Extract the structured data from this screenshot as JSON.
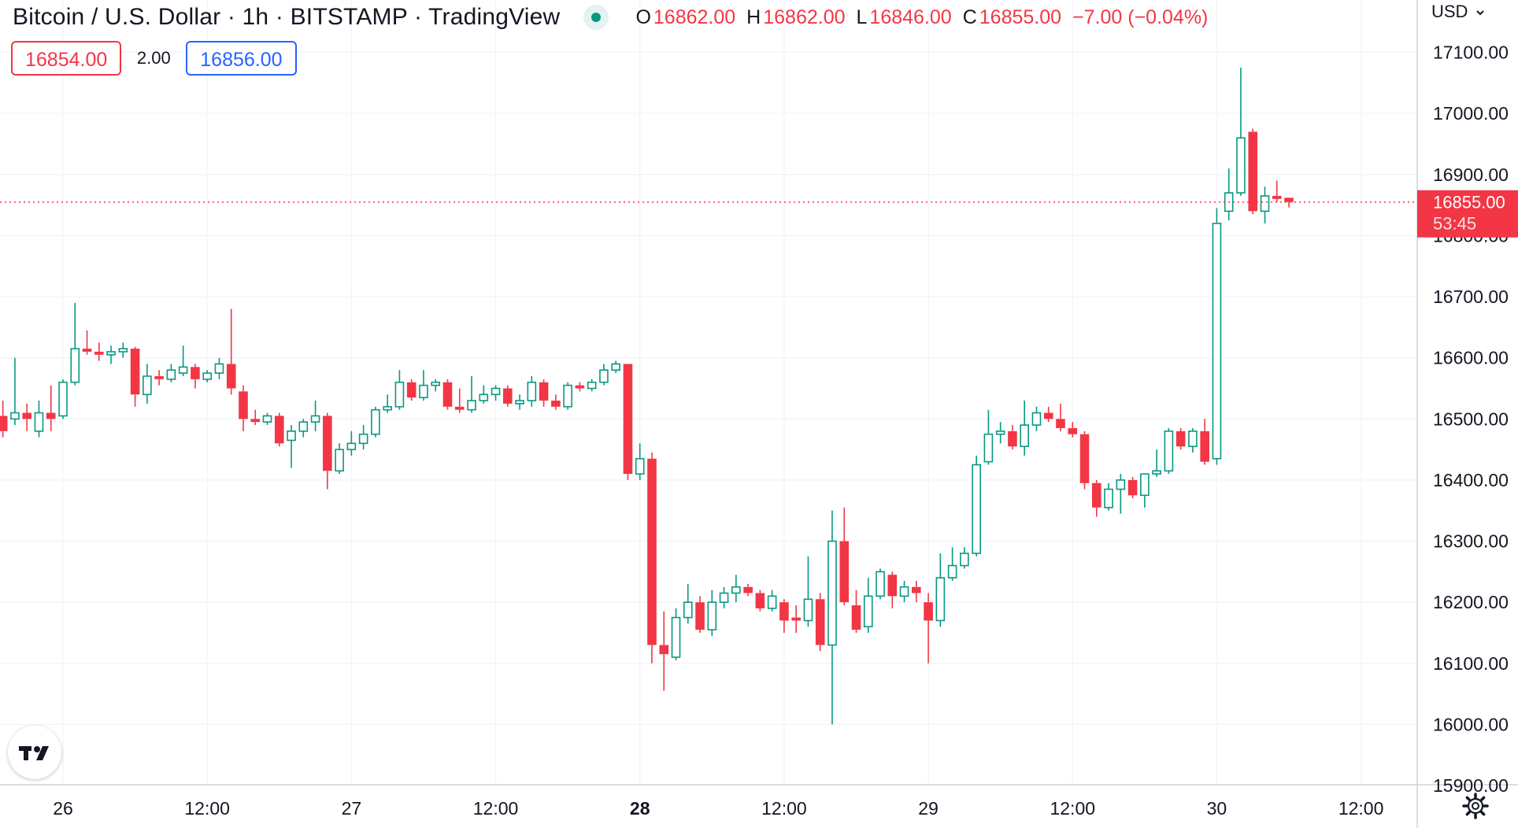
{
  "header": {
    "title": "Bitcoin / U.S. Dollar · 1h · BITSTAMP · TradingView",
    "ohlc": {
      "o_label": "O",
      "o_value": "16862.00",
      "h_label": "H",
      "h_value": "16862.00",
      "l_label": "L",
      "l_value": "16846.00",
      "c_label": "C",
      "c_value": "16855.00",
      "change": "−7.00 (−0.04%)"
    },
    "sell_price": "16854.00",
    "spread": "2.00",
    "buy_price": "16856.00",
    "currency": "USD"
  },
  "colors": {
    "up": "#089981",
    "down": "#f23645",
    "grid": "#f0f3fa",
    "text": "#131722",
    "accent": "#2962ff"
  },
  "icons": {
    "logo": "tradingview-logo-icon",
    "settings": "gear-icon",
    "currency_caret": "chevron-down-icon",
    "live": "market-open-dot-icon"
  },
  "chart_data": {
    "type": "candlestick",
    "timeframe": "1h",
    "ylim": [
      15900,
      17120
    ],
    "y_ticks": [
      "17100.00",
      "17000.00",
      "16900.00",
      "16800.00",
      "16700.00",
      "16600.00",
      "16500.00",
      "16400.00",
      "16300.00",
      "16200.00",
      "16100.00",
      "16000.00",
      "15900.00"
    ],
    "x_ticks": [
      {
        "x": 0,
        "label": "26",
        "bold": false
      },
      {
        "x": 12,
        "label": "12:00",
        "bold": false
      },
      {
        "x": 24,
        "label": "27",
        "bold": false
      },
      {
        "x": 36,
        "label": "12:00",
        "bold": false
      },
      {
        "x": 48,
        "label": "28",
        "bold": true
      },
      {
        "x": 60,
        "label": "12:00",
        "bold": false
      },
      {
        "x": 72,
        "label": "29",
        "bold": false
      },
      {
        "x": 84,
        "label": "12:00",
        "bold": false
      },
      {
        "x": 96,
        "label": "30",
        "bold": false
      },
      {
        "x": 108,
        "label": "12:00",
        "bold": false
      }
    ],
    "last_price": {
      "value": 16855.0,
      "label": "16855.00",
      "countdown": "53:45"
    },
    "candles": [
      {
        "x": -5,
        "o": 16505,
        "h": 16530,
        "l": 16470,
        "c": 16480
      },
      {
        "x": -4,
        "o": 16500,
        "h": 16600,
        "l": 16490,
        "c": 16510
      },
      {
        "x": -3,
        "o": 16510,
        "h": 16525,
        "l": 16480,
        "c": 16500
      },
      {
        "x": -2,
        "o": 16480,
        "h": 16530,
        "l": 16470,
        "c": 16510
      },
      {
        "x": -1,
        "o": 16510,
        "h": 16555,
        "l": 16480,
        "c": 16500
      },
      {
        "x": 0,
        "o": 16505,
        "h": 16565,
        "l": 16500,
        "c": 16560
      },
      {
        "x": 1,
        "o": 16560,
        "h": 16690,
        "l": 16555,
        "c": 16615
      },
      {
        "x": 2,
        "o": 16615,
        "h": 16645,
        "l": 16605,
        "c": 16610
      },
      {
        "x": 3,
        "o": 16610,
        "h": 16625,
        "l": 16595,
        "c": 16605
      },
      {
        "x": 4,
        "o": 16605,
        "h": 16620,
        "l": 16590,
        "c": 16610
      },
      {
        "x": 5,
        "o": 16610,
        "h": 16625,
        "l": 16600,
        "c": 16615
      },
      {
        "x": 6,
        "o": 16615,
        "h": 16618,
        "l": 16520,
        "c": 16540
      },
      {
        "x": 7,
        "o": 16540,
        "h": 16590,
        "l": 16525,
        "c": 16570
      },
      {
        "x": 8,
        "o": 16570,
        "h": 16580,
        "l": 16555,
        "c": 16565
      },
      {
        "x": 9,
        "o": 16565,
        "h": 16590,
        "l": 16560,
        "c": 16580
      },
      {
        "x": 10,
        "o": 16575,
        "h": 16620,
        "l": 16570,
        "c": 16585
      },
      {
        "x": 11,
        "o": 16585,
        "h": 16590,
        "l": 16550,
        "c": 16565
      },
      {
        "x": 12,
        "o": 16565,
        "h": 16580,
        "l": 16560,
        "c": 16575
      },
      {
        "x": 13,
        "o": 16575,
        "h": 16600,
        "l": 16565,
        "c": 16590
      },
      {
        "x": 14,
        "o": 16590,
        "h": 16680,
        "l": 16540,
        "c": 16550
      },
      {
        "x": 15,
        "o": 16545,
        "h": 16555,
        "l": 16480,
        "c": 16500
      },
      {
        "x": 16,
        "o": 16500,
        "h": 16515,
        "l": 16490,
        "c": 16495
      },
      {
        "x": 17,
        "o": 16495,
        "h": 16510,
        "l": 16490,
        "c": 16505
      },
      {
        "x": 18,
        "o": 16505,
        "h": 16510,
        "l": 16455,
        "c": 16460
      },
      {
        "x": 19,
        "o": 16465,
        "h": 16490,
        "l": 16420,
        "c": 16480
      },
      {
        "x": 20,
        "o": 16480,
        "h": 16500,
        "l": 16470,
        "c": 16495
      },
      {
        "x": 21,
        "o": 16495,
        "h": 16530,
        "l": 16480,
        "c": 16505
      },
      {
        "x": 22,
        "o": 16505,
        "h": 16510,
        "l": 16385,
        "c": 16415
      },
      {
        "x": 23,
        "o": 16415,
        "h": 16460,
        "l": 16410,
        "c": 16450
      },
      {
        "x": 24,
        "o": 16450,
        "h": 16480,
        "l": 16440,
        "c": 16460
      },
      {
        "x": 25,
        "o": 16460,
        "h": 16490,
        "l": 16450,
        "c": 16475
      },
      {
        "x": 26,
        "o": 16475,
        "h": 16520,
        "l": 16470,
        "c": 16515
      },
      {
        "x": 27,
        "o": 16515,
        "h": 16540,
        "l": 16510,
        "c": 16520
      },
      {
        "x": 28,
        "o": 16520,
        "h": 16580,
        "l": 16515,
        "c": 16560
      },
      {
        "x": 29,
        "o": 16560,
        "h": 16565,
        "l": 16530,
        "c": 16535
      },
      {
        "x": 30,
        "o": 16535,
        "h": 16580,
        "l": 16530,
        "c": 16555
      },
      {
        "x": 31,
        "o": 16555,
        "h": 16565,
        "l": 16545,
        "c": 16560
      },
      {
        "x": 32,
        "o": 16560,
        "h": 16565,
        "l": 16515,
        "c": 16520
      },
      {
        "x": 33,
        "o": 16520,
        "h": 16550,
        "l": 16510,
        "c": 16515
      },
      {
        "x": 34,
        "o": 16515,
        "h": 16570,
        "l": 16510,
        "c": 16530
      },
      {
        "x": 35,
        "o": 16530,
        "h": 16555,
        "l": 16525,
        "c": 16540
      },
      {
        "x": 36,
        "o": 16540,
        "h": 16555,
        "l": 16530,
        "c": 16550
      },
      {
        "x": 37,
        "o": 16550,
        "h": 16555,
        "l": 16520,
        "c": 16525
      },
      {
        "x": 38,
        "o": 16525,
        "h": 16540,
        "l": 16515,
        "c": 16530
      },
      {
        "x": 39,
        "o": 16530,
        "h": 16570,
        "l": 16520,
        "c": 16560
      },
      {
        "x": 40,
        "o": 16560,
        "h": 16565,
        "l": 16520,
        "c": 16530
      },
      {
        "x": 41,
        "o": 16530,
        "h": 16540,
        "l": 16515,
        "c": 16520
      },
      {
        "x": 42,
        "o": 16520,
        "h": 16560,
        "l": 16515,
        "c": 16555
      },
      {
        "x": 43,
        "o": 16555,
        "h": 16560,
        "l": 16545,
        "c": 16550
      },
      {
        "x": 44,
        "o": 16550,
        "h": 16565,
        "l": 16545,
        "c": 16560
      },
      {
        "x": 45,
        "o": 16560,
        "h": 16590,
        "l": 16555,
        "c": 16580
      },
      {
        "x": 46,
        "o": 16580,
        "h": 16595,
        "l": 16575,
        "c": 16590
      },
      {
        "x": 47,
        "o": 16590,
        "h": 16590,
        "l": 16400,
        "c": 16410
      },
      {
        "x": 48,
        "o": 16410,
        "h": 16460,
        "l": 16400,
        "c": 16435
      },
      {
        "x": 49,
        "o": 16435,
        "h": 16445,
        "l": 16100,
        "c": 16130
      },
      {
        "x": 50,
        "o": 16130,
        "h": 16185,
        "l": 16055,
        "c": 16115
      },
      {
        "x": 51,
        "o": 16110,
        "h": 16190,
        "l": 16105,
        "c": 16175
      },
      {
        "x": 52,
        "o": 16175,
        "h": 16230,
        "l": 16165,
        "c": 16200
      },
      {
        "x": 53,
        "o": 16200,
        "h": 16210,
        "l": 16150,
        "c": 16155
      },
      {
        "x": 54,
        "o": 16155,
        "h": 16220,
        "l": 16145,
        "c": 16200
      },
      {
        "x": 55,
        "o": 16200,
        "h": 16225,
        "l": 16190,
        "c": 16215
      },
      {
        "x": 56,
        "o": 16215,
        "h": 16245,
        "l": 16200,
        "c": 16225
      },
      {
        "x": 57,
        "o": 16225,
        "h": 16230,
        "l": 16210,
        "c": 16215
      },
      {
        "x": 58,
        "o": 16215,
        "h": 16220,
        "l": 16185,
        "c": 16190
      },
      {
        "x": 59,
        "o": 16190,
        "h": 16220,
        "l": 16185,
        "c": 16210
      },
      {
        "x": 60,
        "o": 16200,
        "h": 16205,
        "l": 16150,
        "c": 16170
      },
      {
        "x": 61,
        "o": 16175,
        "h": 16195,
        "l": 16150,
        "c": 16170
      },
      {
        "x": 62,
        "o": 16170,
        "h": 16275,
        "l": 16160,
        "c": 16205
      },
      {
        "x": 63,
        "o": 16205,
        "h": 16215,
        "l": 16120,
        "c": 16130
      },
      {
        "x": 64,
        "o": 16130,
        "h": 16350,
        "l": 16000,
        "c": 16300
      },
      {
        "x": 65,
        "o": 16300,
        "h": 16355,
        "l": 16195,
        "c": 16200
      },
      {
        "x": 66,
        "o": 16195,
        "h": 16220,
        "l": 16150,
        "c": 16155
      },
      {
        "x": 67,
        "o": 16160,
        "h": 16240,
        "l": 16150,
        "c": 16210
      },
      {
        "x": 68,
        "o": 16210,
        "h": 16255,
        "l": 16205,
        "c": 16250
      },
      {
        "x": 69,
        "o": 16245,
        "h": 16250,
        "l": 16190,
        "c": 16210
      },
      {
        "x": 70,
        "o": 16210,
        "h": 16235,
        "l": 16200,
        "c": 16225
      },
      {
        "x": 71,
        "o": 16225,
        "h": 16235,
        "l": 16200,
        "c": 16215
      },
      {
        "x": 72,
        "o": 16200,
        "h": 16215,
        "l": 16100,
        "c": 16170
      },
      {
        "x": 73,
        "o": 16170,
        "h": 16280,
        "l": 16160,
        "c": 16240
      },
      {
        "x": 74,
        "o": 16240,
        "h": 16290,
        "l": 16235,
        "c": 16260
      },
      {
        "x": 75,
        "o": 16260,
        "h": 16290,
        "l": 16255,
        "c": 16280
      },
      {
        "x": 76,
        "o": 16280,
        "h": 16440,
        "l": 16275,
        "c": 16425
      },
      {
        "x": 77,
        "o": 16430,
        "h": 16515,
        "l": 16425,
        "c": 16475
      },
      {
        "x": 78,
        "o": 16475,
        "h": 16495,
        "l": 16460,
        "c": 16480
      },
      {
        "x": 79,
        "o": 16480,
        "h": 16490,
        "l": 16450,
        "c": 16455
      },
      {
        "x": 80,
        "o": 16455,
        "h": 16530,
        "l": 16440,
        "c": 16490
      },
      {
        "x": 81,
        "o": 16490,
        "h": 16520,
        "l": 16480,
        "c": 16510
      },
      {
        "x": 82,
        "o": 16510,
        "h": 16520,
        "l": 16495,
        "c": 16500
      },
      {
        "x": 83,
        "o": 16500,
        "h": 16525,
        "l": 16480,
        "c": 16485
      },
      {
        "x": 84,
        "o": 16485,
        "h": 16495,
        "l": 16470,
        "c": 16475
      },
      {
        "x": 85,
        "o": 16475,
        "h": 16480,
        "l": 16385,
        "c": 16395
      },
      {
        "x": 86,
        "o": 16395,
        "h": 16400,
        "l": 16340,
        "c": 16355
      },
      {
        "x": 87,
        "o": 16355,
        "h": 16395,
        "l": 16350,
        "c": 16385
      },
      {
        "x": 88,
        "o": 16385,
        "h": 16410,
        "l": 16345,
        "c": 16400
      },
      {
        "x": 89,
        "o": 16400,
        "h": 16405,
        "l": 16370,
        "c": 16375
      },
      {
        "x": 90,
        "o": 16375,
        "h": 16410,
        "l": 16355,
        "c": 16410
      },
      {
        "x": 91,
        "o": 16410,
        "h": 16450,
        "l": 16405,
        "c": 16415
      },
      {
        "x": 92,
        "o": 16415,
        "h": 16485,
        "l": 16410,
        "c": 16480
      },
      {
        "x": 93,
        "o": 16480,
        "h": 16485,
        "l": 16450,
        "c": 16455
      },
      {
        "x": 94,
        "o": 16455,
        "h": 16485,
        "l": 16445,
        "c": 16480
      },
      {
        "x": 95,
        "o": 16480,
        "h": 16500,
        "l": 16425,
        "c": 16430
      },
      {
        "x": 96,
        "o": 16435,
        "h": 16845,
        "l": 16425,
        "c": 16820
      },
      {
        "x": 97,
        "o": 16840,
        "h": 16910,
        "l": 16825,
        "c": 16870
      },
      {
        "x": 98,
        "o": 16870,
        "h": 17075,
        "l": 16865,
        "c": 16960
      },
      {
        "x": 99,
        "o": 16970,
        "h": 16975,
        "l": 16835,
        "c": 16840
      },
      {
        "x": 100,
        "o": 16840,
        "h": 16880,
        "l": 16820,
        "c": 16865
      },
      {
        "x": 101,
        "o": 16865,
        "h": 16890,
        "l": 16855,
        "c": 16860
      },
      {
        "x": 102,
        "o": 16862,
        "h": 16862,
        "l": 16846,
        "c": 16855
      }
    ]
  }
}
